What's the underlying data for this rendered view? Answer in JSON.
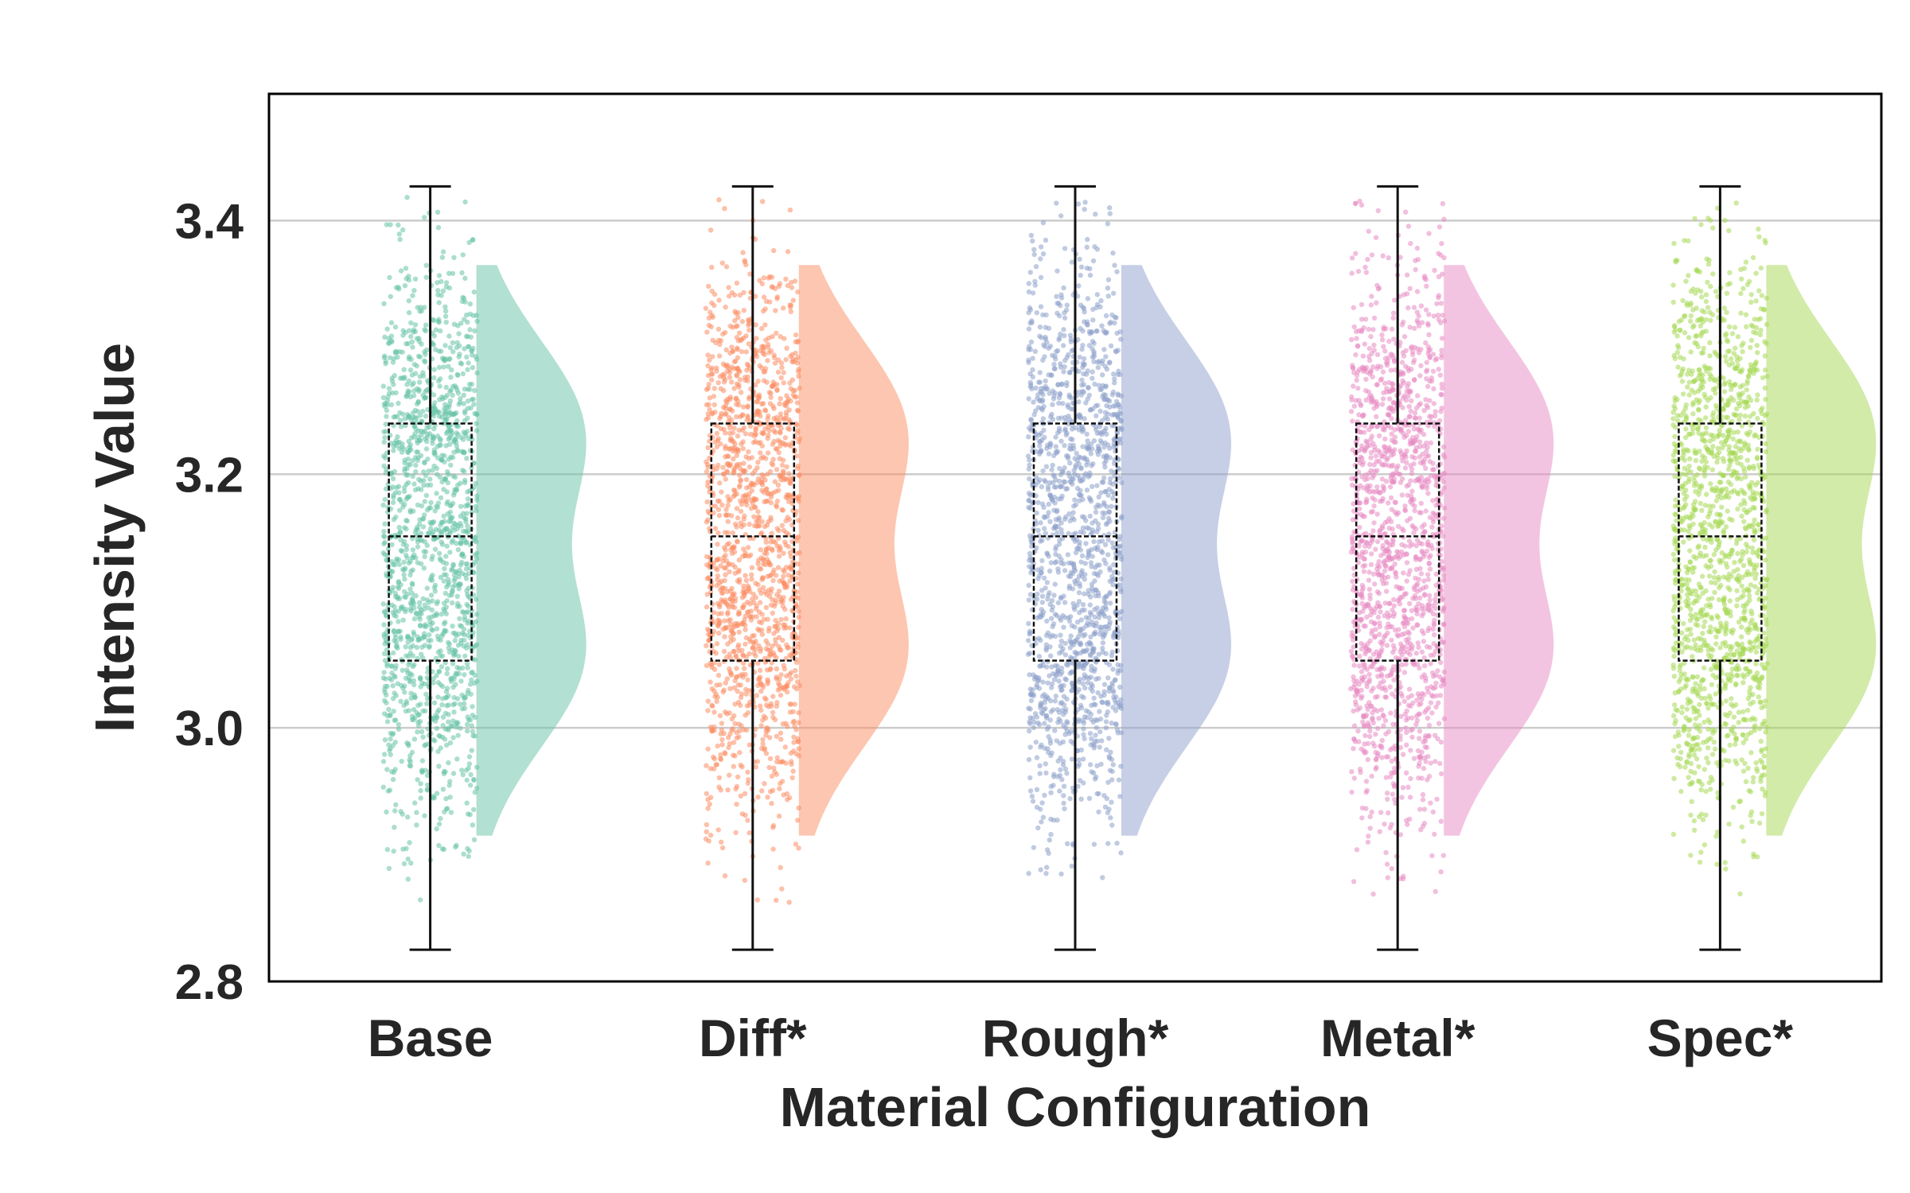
{
  "chart_data": {
    "type": "raincloud",
    "xlabel": "Material Configuration",
    "ylabel": "Intensity Value",
    "ylim": [
      2.8,
      3.5
    ],
    "yticks": [
      "2.8",
      "3.0",
      "3.2",
      "3.4"
    ],
    "grid": true,
    "categories": [
      "Base",
      "Diff*",
      "Rough*",
      "Metal*",
      "Spec*"
    ],
    "colors": [
      "#66c2a5",
      "#fc8d62",
      "#8da0cb",
      "#e78ac3",
      "#a6d854"
    ],
    "series": [
      {
        "category": "Base",
        "min": 2.825,
        "q1": 3.053,
        "median": 3.151,
        "q3": 3.24,
        "max": 3.427,
        "kde_range": [
          2.915,
          3.365
        ],
        "kde_modes": [
          3.055,
          3.235
        ]
      },
      {
        "category": "Diff*",
        "min": 2.825,
        "q1": 3.053,
        "median": 3.151,
        "q3": 3.24,
        "max": 3.427,
        "kde_range": [
          2.915,
          3.365
        ],
        "kde_modes": [
          3.055,
          3.235
        ]
      },
      {
        "category": "Rough*",
        "min": 2.825,
        "q1": 3.053,
        "median": 3.151,
        "q3": 3.24,
        "max": 3.427,
        "kde_range": [
          2.915,
          3.365
        ],
        "kde_modes": [
          3.055,
          3.235
        ]
      },
      {
        "category": "Metal*",
        "min": 2.825,
        "q1": 3.053,
        "median": 3.151,
        "q3": 3.24,
        "max": 3.427,
        "kde_range": [
          2.915,
          3.365
        ],
        "kde_modes": [
          3.055,
          3.235
        ]
      },
      {
        "category": "Spec*",
        "min": 2.825,
        "q1": 3.053,
        "median": 3.151,
        "q3": 3.24,
        "max": 3.427,
        "kde_range": [
          2.915,
          3.365
        ],
        "kde_modes": [
          3.055,
          3.235
        ]
      }
    ]
  }
}
